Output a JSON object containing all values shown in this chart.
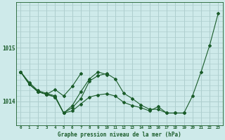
{
  "background_color": "#ceeaea",
  "grid_color": "#aecece",
  "line_color": "#1a5c2a",
  "title": "Graphe pression niveau de la mer (hPa)",
  "ylabel_ticks": [
    1014,
    1015
  ],
  "x_labels": [
    "0",
    "1",
    "2",
    "3",
    "4",
    "5",
    "6",
    "7",
    "8",
    "9",
    "10",
    "11",
    "12",
    "13",
    "14",
    "15",
    "16",
    "17",
    "18",
    "19",
    "20",
    "21",
    "22",
    "23"
  ],
  "series": [
    [
      1014.55,
      1014.35,
      1014.2,
      1014.15,
      1014.1,
      1013.78,
      1013.82,
      1013.95,
      1014.08,
      1014.12,
      1014.14,
      1014.1,
      1013.98,
      1013.92,
      1013.88,
      1013.82,
      1013.9,
      1013.78,
      1013.78,
      1013.78,
      1014.1,
      1014.55,
      1015.05,
      1015.65
    ],
    [
      1014.55,
      1014.32,
      1014.18,
      1014.13,
      1014.08,
      1013.78,
      1013.88,
      1014.05,
      1014.38,
      1014.48,
      1014.52,
      1014.42,
      1014.15,
      1014.05,
      1013.93,
      1013.85,
      1013.85,
      1013.78,
      1013.78,
      1013.78,
      null,
      null,
      null,
      null
    ],
    [
      1014.55,
      1014.32,
      1014.18,
      1014.13,
      1014.08,
      1013.78,
      1013.92,
      1014.18,
      1014.42,
      1014.55,
      1014.5,
      null,
      null,
      null,
      null,
      null,
      null,
      null,
      null,
      null,
      null,
      null,
      null,
      null
    ],
    [
      1014.55,
      1014.32,
      1014.18,
      1014.13,
      1014.22,
      1014.1,
      1014.28,
      1014.52,
      null,
      null,
      null,
      null,
      null,
      null,
      null,
      null,
      null,
      null,
      null,
      null,
      null,
      null,
      null,
      null
    ]
  ],
  "xlim": [
    -0.5,
    23.5
  ],
  "ylim": [
    1013.55,
    1015.85
  ],
  "figsize": [
    3.2,
    2.0
  ],
  "dpi": 100
}
